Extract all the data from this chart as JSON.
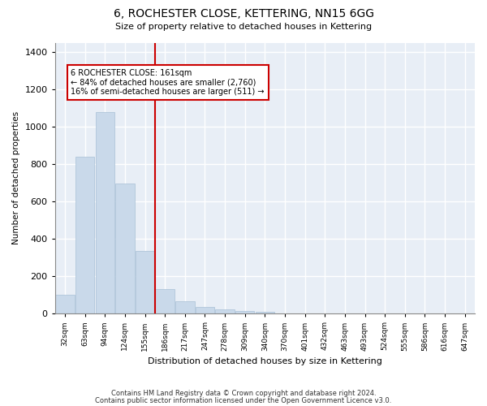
{
  "title": "6, ROCHESTER CLOSE, KETTERING, NN15 6GG",
  "subtitle": "Size of property relative to detached houses in Kettering",
  "xlabel": "Distribution of detached houses by size in Kettering",
  "ylabel": "Number of detached properties",
  "bar_color": "#c9d9ea",
  "bar_edge_color": "#a8c0d6",
  "background_color": "#e8eef6",
  "grid_color": "#ffffff",
  "categories": [
    "32sqm",
    "63sqm",
    "94sqm",
    "124sqm",
    "155sqm",
    "186sqm",
    "217sqm",
    "247sqm",
    "278sqm",
    "309sqm",
    "340sqm",
    "370sqm",
    "401sqm",
    "432sqm",
    "463sqm",
    "493sqm",
    "524sqm",
    "555sqm",
    "586sqm",
    "616sqm",
    "647sqm"
  ],
  "values": [
    100,
    840,
    1080,
    695,
    335,
    130,
    65,
    35,
    22,
    15,
    12,
    0,
    0,
    0,
    0,
    0,
    0,
    0,
    0,
    0,
    0
  ],
  "ylim": [
    0,
    1450
  ],
  "yticks": [
    0,
    200,
    400,
    600,
    800,
    1000,
    1200,
    1400
  ],
  "vline_x": 4.5,
  "vline_color": "#cc0000",
  "annotation_line1": "6 ROCHESTER CLOSE: 161sqm",
  "annotation_line2": "← 84% of detached houses are smaller (2,760)",
  "annotation_line3": "16% of semi-detached houses are larger (511) →",
  "annotation_box_color": "#ffffff",
  "annotation_box_edge": "#cc0000",
  "footer1": "Contains HM Land Registry data © Crown copyright and database right 2024.",
  "footer2": "Contains public sector information licensed under the Open Government Licence v3.0."
}
